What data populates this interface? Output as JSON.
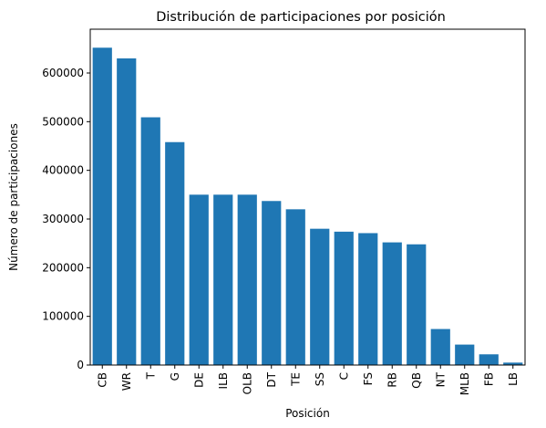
{
  "chart_data": {
    "type": "bar",
    "title": "Distribución de participaciones por posición",
    "xlabel": "Posición",
    "ylabel": "Número de participaciones",
    "categories": [
      "CB",
      "WR",
      "T",
      "G",
      "DE",
      "ILB",
      "OLB",
      "DT",
      "TE",
      "SS",
      "C",
      "FS",
      "RB",
      "QB",
      "NT",
      "MLB",
      "FB",
      "LB"
    ],
    "values": [
      652000,
      630000,
      509000,
      458000,
      350000,
      350000,
      350000,
      337000,
      320000,
      280000,
      274000,
      271000,
      252000,
      248000,
      74000,
      42000,
      22000,
      5000
    ],
    "yticks": [
      0,
      100000,
      200000,
      300000,
      400000,
      500000,
      600000
    ],
    "ylim": [
      0,
      690000
    ],
    "bar_color": "#1f77b4",
    "grid": false,
    "legend": "none"
  }
}
